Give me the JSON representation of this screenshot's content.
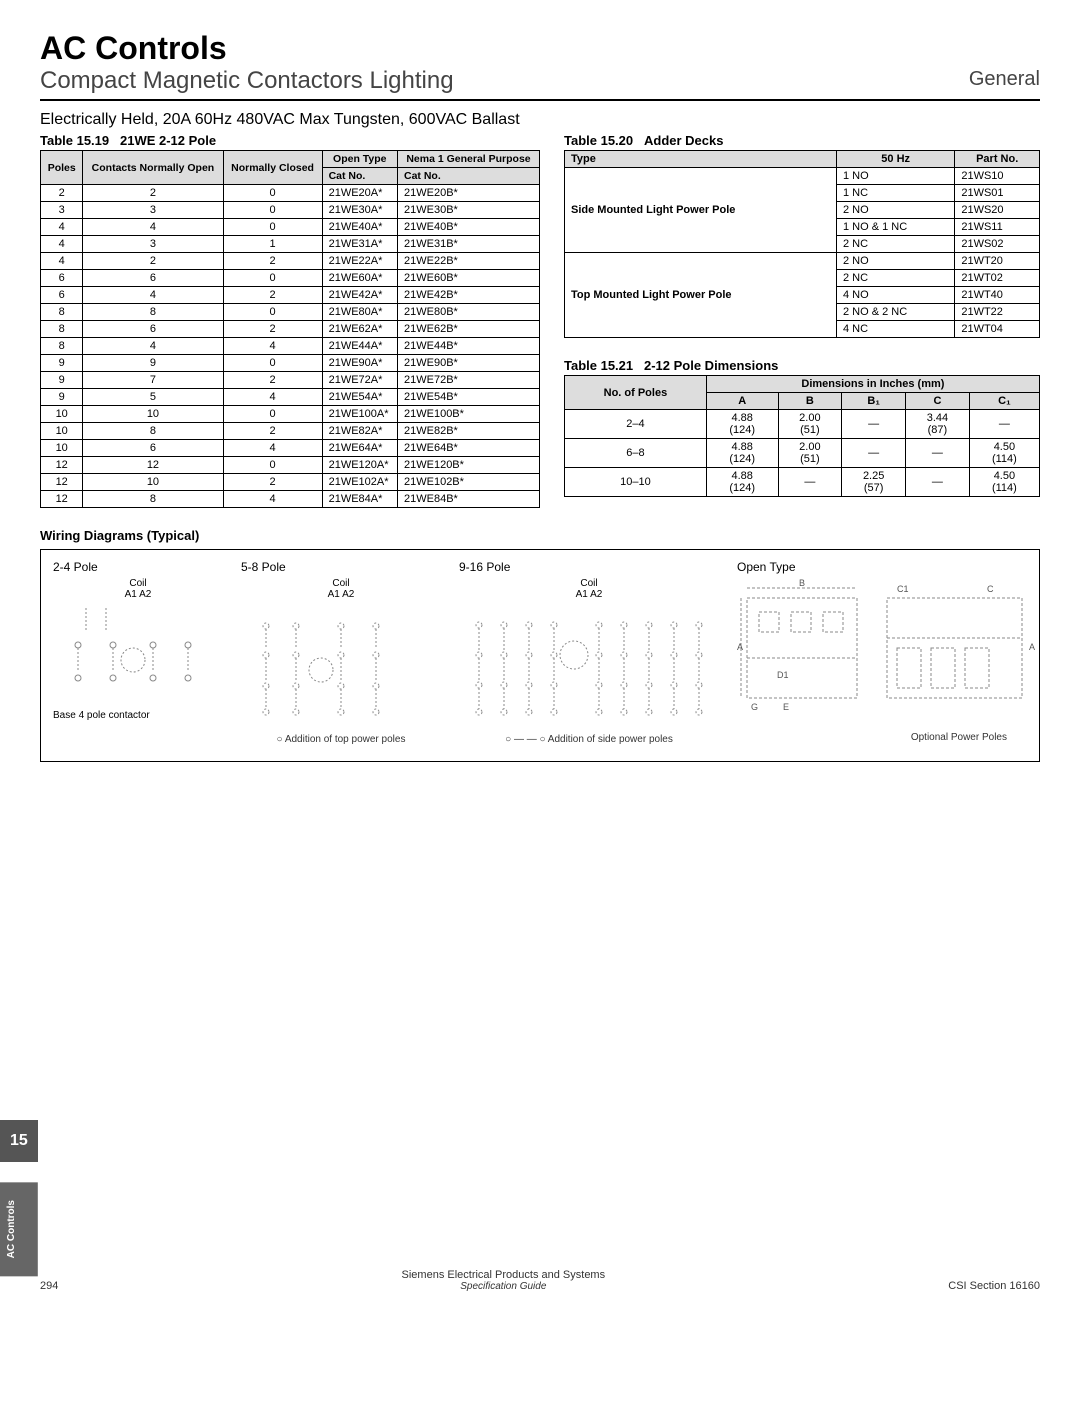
{
  "header": {
    "title": "AC Controls",
    "subtitle": "Compact Magnetic Contactors Lighting",
    "right": "General"
  },
  "sectionTitle": "Electrically Held, 20A 60Hz 480VAC Max Tungsten, 600VAC Ballast",
  "t19": {
    "caption_label": "Table 15.19",
    "caption_text": "21WE 2-12 Pole",
    "headers": {
      "poles": "Poles",
      "contacts": "Contacts Normally Open",
      "normally_closed": "Normally Closed",
      "open_type": "Open Type",
      "nema": "Nema 1 General Purpose",
      "cat1": "Cat No.",
      "cat2": "Cat No."
    },
    "groups": [
      [
        {
          "p": "2",
          "co": "2",
          "nc": "0",
          "ot": "21WE20A*",
          "gp": "21WE20B*"
        },
        {
          "p": "3",
          "co": "3",
          "nc": "0",
          "ot": "21WE30A*",
          "gp": "21WE30B*"
        },
        {
          "p": "4",
          "co": "4",
          "nc": "0",
          "ot": "21WE40A*",
          "gp": "21WE40B*"
        },
        {
          "p": "4",
          "co": "3",
          "nc": "1",
          "ot": "21WE31A*",
          "gp": "21WE31B*"
        }
      ],
      [
        {
          "p": "4",
          "co": "2",
          "nc": "2",
          "ot": "21WE22A*",
          "gp": "21WE22B*"
        },
        {
          "p": "6",
          "co": "6",
          "nc": "0",
          "ot": "21WE60A*",
          "gp": "21WE60B*"
        },
        {
          "p": "6",
          "co": "4",
          "nc": "2",
          "ot": "21WE42A*",
          "gp": "21WE42B*"
        },
        {
          "p": "8",
          "co": "8",
          "nc": "0",
          "ot": "21WE80A*",
          "gp": "21WE80B*"
        }
      ],
      [
        {
          "p": "8",
          "co": "6",
          "nc": "2",
          "ot": "21WE62A*",
          "gp": "21WE62B*"
        },
        {
          "p": "8",
          "co": "4",
          "nc": "4",
          "ot": "21WE44A*",
          "gp": "21WE44B*"
        },
        {
          "p": "9",
          "co": "9",
          "nc": "0",
          "ot": "21WE90A*",
          "gp": "21WE90B*"
        },
        {
          "p": "9",
          "co": "7",
          "nc": "2",
          "ot": "21WE72A*",
          "gp": "21WE72B*"
        }
      ],
      [
        {
          "p": "9",
          "co": "5",
          "nc": "4",
          "ot": "21WE54A*",
          "gp": "21WE54B*"
        },
        {
          "p": "10",
          "co": "10",
          "nc": "0",
          "ot": "21WE100A*",
          "gp": "21WE100B*"
        },
        {
          "p": "10",
          "co": "8",
          "nc": "2",
          "ot": "21WE82A*",
          "gp": "21WE82B*"
        },
        {
          "p": "10",
          "co": "6",
          "nc": "4",
          "ot": "21WE64A*",
          "gp": "21WE64B*"
        }
      ],
      [
        {
          "p": "12",
          "co": "12",
          "nc": "0",
          "ot": "21WE120A*",
          "gp": "21WE120B*"
        },
        {
          "p": "12",
          "co": "10",
          "nc": "2",
          "ot": "21WE102A*",
          "gp": "21WE102B*"
        },
        {
          "p": "12",
          "co": "8",
          "nc": "4",
          "ot": "21WE84A*",
          "gp": "21WE84B*"
        }
      ]
    ]
  },
  "t20": {
    "caption_label": "Table 15.20",
    "caption_text": "Adder Decks",
    "headers": {
      "type": "Type",
      "hz": "50 Hz",
      "part": "Part No."
    },
    "rows": [
      {
        "type": "Side Mounted Light Power Pole",
        "hz": "1 NO",
        "part": "21WS10"
      },
      {
        "type": "",
        "hz": "1 NC",
        "part": "21WS01"
      },
      {
        "type": "",
        "hz": "2 NO",
        "part": "21WS20"
      },
      {
        "type": "",
        "hz": "1 NO & 1 NC",
        "part": "21WS11"
      },
      {
        "type": "",
        "hz": "2 NC",
        "part": "21WS02"
      },
      {
        "type": "Top Mounted Light Power Pole",
        "hz": "2 NO",
        "part": "21WT20"
      },
      {
        "type": "",
        "hz": "2 NC",
        "part": "21WT02"
      },
      {
        "type": "",
        "hz": "4 NO",
        "part": "21WT40"
      },
      {
        "type": "",
        "hz": "2 NO & 2 NC",
        "part": "21WT22"
      },
      {
        "type": "",
        "hz": "4 NC",
        "part": "21WT04"
      }
    ]
  },
  "t21": {
    "caption_label": "Table 15.21",
    "caption_text": "2-12 Pole Dimensions",
    "headers": {
      "no": "No. of Poles",
      "dim": "Dimensions in Inches (mm)",
      "a": "A",
      "b": "B",
      "b1": "B₁",
      "c": "C",
      "c1": "C₁"
    },
    "rows": [
      {
        "p": "2–4",
        "a": "4.88 (124)",
        "b": "2.00 (51)",
        "b1": "—",
        "c": "3.44 (87)",
        "c1": "—"
      },
      {
        "p": "6–8",
        "a": "4.88 (124)",
        "b": "2.00 (51)",
        "b1": "—",
        "c": "—",
        "c1": "4.50 (114)"
      },
      {
        "p": "10–10",
        "a": "4.88 (124)",
        "b": "—",
        "b1": "2.25 (57)",
        "c": "—",
        "c1": "4.50 (114)"
      }
    ]
  },
  "wiring": {
    "heading": "Wiring Diagrams (Typical)",
    "cols": {
      "c1": "2-4 Pole",
      "c2": "5-8 Pole",
      "c3": "9-16 Pole",
      "c4": "Open Type"
    },
    "labels": {
      "coil": "Coil",
      "a1a2": "A1  A2",
      "base4": "Base 4 pole contactor",
      "addtop": "Addition of top power poles",
      "addside": "Addition of side power poles",
      "optional": "Optional Power Poles"
    }
  },
  "tabs": {
    "num": "15",
    "text": "AC Controls"
  },
  "footer": {
    "page": "294",
    "mid1": "Siemens Electrical Products and Systems",
    "mid2": "Specification Guide",
    "right": "CSI Section 16160"
  }
}
